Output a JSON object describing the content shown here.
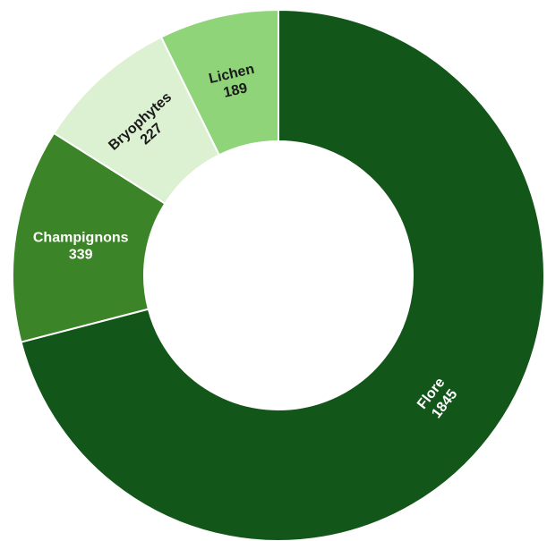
{
  "chart_data": {
    "type": "pie",
    "variant": "donut",
    "categories": [
      "Flore",
      "Champignons",
      "Bryophytes",
      "Lichen"
    ],
    "values": [
      1845,
      339,
      227,
      189
    ],
    "colors": [
      "#13561a",
      "#3b8427",
      "#dcf1d1",
      "#8fd479"
    ],
    "label_colors": [
      "#ffffff",
      "#ffffff",
      "#1a1a1a",
      "#1a1a1a"
    ],
    "title": "",
    "legend": "none"
  }
}
